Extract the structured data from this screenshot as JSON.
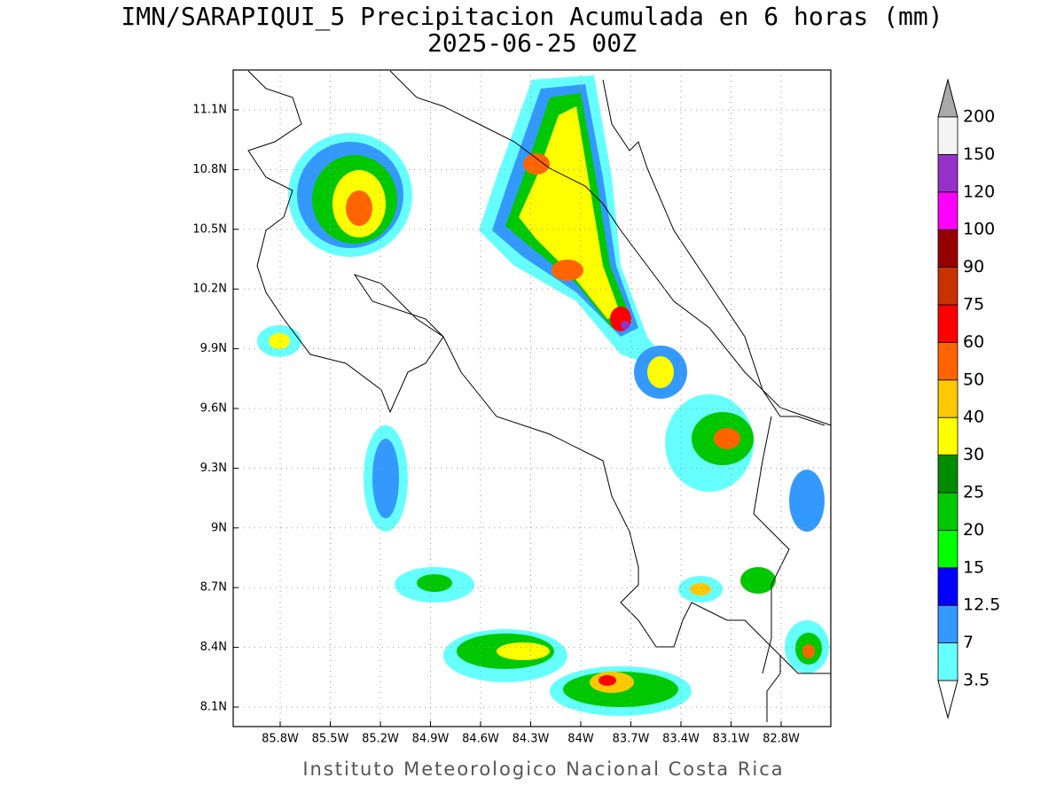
{
  "title": {
    "line1": "IMN/SARAPIQUI_5 Precipitacion Acumulada en 6 horas (mm)",
    "line2": "2025-06-25 00Z"
  },
  "map": {
    "xticks": [
      "85.8W",
      "85.5W",
      "85.2W",
      "84.9W",
      "84.6W",
      "84.3W",
      "84W",
      "83.7W",
      "83.4W",
      "83.1W",
      "82.8W"
    ],
    "yticks": [
      "11.1N",
      "10.8N",
      "10.5N",
      "10.2N",
      "9.9N",
      "9.6N",
      "9.3N",
      "9N",
      "8.7N",
      "8.4N",
      "8.1N"
    ]
  },
  "colorbar": {
    "levels": [
      3.5,
      7,
      12.5,
      15,
      20,
      25,
      30,
      40,
      50,
      60,
      75,
      90,
      100,
      120,
      150,
      200
    ],
    "colors": [
      "#66ffff",
      "#3399ff",
      "#0000ff",
      "#00ff00",
      "#00c800",
      "#008c00",
      "#ffff00",
      "#ffc800",
      "#ff6400",
      "#ff0000",
      "#c83200",
      "#960000",
      "#ff00ff",
      "#9632c8",
      "#f4f4f4"
    ],
    "under_color": "#ffffff",
    "over_color": "#aaaaaa"
  },
  "footer": "Instituto Meteorologico Nacional Costa Rica"
}
